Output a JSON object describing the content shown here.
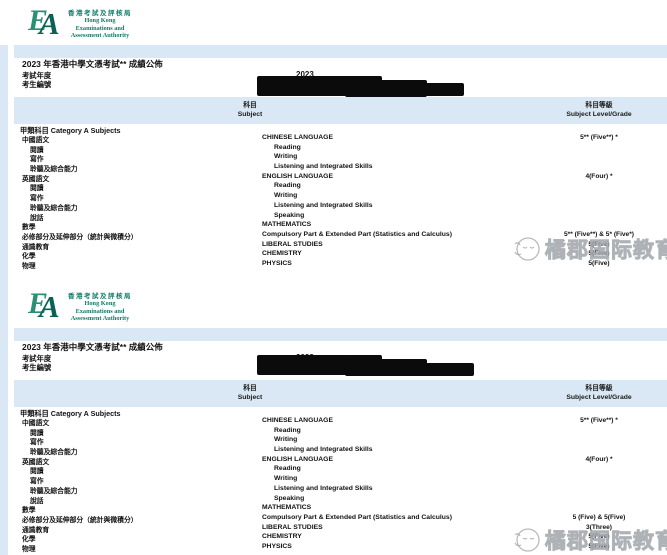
{
  "page": {
    "background": "#ffffff",
    "band_color": "#d9e8f4",
    "strip_color": "#d9e8f4"
  },
  "logo": {
    "monogram": "EA",
    "monogram_color_e": "#2a8f77",
    "monogram_color_a": "#0b6155",
    "zh": "香港考試及評核局",
    "en_lines": [
      "Hong Kong",
      "Examinations and",
      "Assessment Authority"
    ],
    "text_color": "#127a68"
  },
  "watermark": {
    "text": "橘郡国际教育",
    "icon": "mascot-face-icon",
    "color": "#b4b8bb"
  },
  "table_header": {
    "subject_zh": "科目",
    "subject_en": "Subject",
    "level_zh": "科目等級",
    "level_en": "Subject Level/Grade"
  },
  "category": {
    "zh": "甲類科目",
    "en": "Category A Subjects"
  },
  "meta_labels": {
    "year": "考試年度",
    "candidate": "考生編號"
  },
  "slips": [
    {
      "title": "2023 年香港中學文憑考試** 成績公佈",
      "year_value": "2023",
      "candidate_redacted": true,
      "rows": [
        {
          "zh": "中國語文",
          "en": "CHINESE LANGUAGE",
          "grade": "5** (Five**) *",
          "cls": "main"
        },
        {
          "zh": "閱讀",
          "en": "Reading",
          "grade": "",
          "cls": "sub"
        },
        {
          "zh": "寫作",
          "en": "Writing",
          "grade": "",
          "cls": "sub"
        },
        {
          "zh": "聆聽及綜合能力",
          "en": "Listening and Integrated Skills",
          "grade": "",
          "cls": "sub"
        },
        {
          "zh": "英國語文",
          "en": "ENGLISH LANGUAGE",
          "grade": "4(Four) *",
          "cls": "main"
        },
        {
          "zh": "閱讀",
          "en": "Reading",
          "grade": "",
          "cls": "sub"
        },
        {
          "zh": "寫作",
          "en": "Writing",
          "grade": "",
          "cls": "sub"
        },
        {
          "zh": "聆聽及綜合能力",
          "en": "Listening and Integrated Skills",
          "grade": "",
          "cls": "sub"
        },
        {
          "zh": "說話",
          "en": "Speaking",
          "grade": "",
          "cls": "sub"
        },
        {
          "zh": "數學",
          "en": "MATHEMATICS",
          "grade": "",
          "cls": "main"
        },
        {
          "zh": "必修部分及延伸部分（統計與微積分）",
          "en": "Compulsory Part & Extended Part (Statistics and Calculus)",
          "grade": "5** (Five**) & 5* (Five*)",
          "cls": "main"
        },
        {
          "zh": "通識教育",
          "en": "LIBERAL STUDIES",
          "grade": "5(Five)",
          "cls": "main"
        },
        {
          "zh": "化學",
          "en": "CHEMISTRY",
          "grade": "5(Five)",
          "cls": "main"
        },
        {
          "zh": "物理",
          "en": "PHYSICS",
          "grade": "5(Five)",
          "cls": "main"
        }
      ]
    },
    {
      "title": "2023 年香港中學文憑考試** 成績公佈",
      "year_value": "2023",
      "candidate_redacted": true,
      "rows": [
        {
          "zh": "中國語文",
          "en": "CHINESE LANGUAGE",
          "grade": "5** (Five**) *",
          "cls": "main"
        },
        {
          "zh": "閱讀",
          "en": "Reading",
          "grade": "",
          "cls": "sub"
        },
        {
          "zh": "寫作",
          "en": "Writing",
          "grade": "",
          "cls": "sub"
        },
        {
          "zh": "聆聽及綜合能力",
          "en": "Listening and Integrated Skills",
          "grade": "",
          "cls": "sub"
        },
        {
          "zh": "英國語文",
          "en": "ENGLISH LANGUAGE",
          "grade": "4(Four) *",
          "cls": "main"
        },
        {
          "zh": "閱讀",
          "en": "Reading",
          "grade": "",
          "cls": "sub"
        },
        {
          "zh": "寫作",
          "en": "Writing",
          "grade": "",
          "cls": "sub"
        },
        {
          "zh": "聆聽及綜合能力",
          "en": "Listening and Integrated Skills",
          "grade": "",
          "cls": "sub"
        },
        {
          "zh": "說話",
          "en": "Speaking",
          "grade": "",
          "cls": "sub"
        },
        {
          "zh": "數學",
          "en": "MATHEMATICS",
          "grade": "",
          "cls": "main"
        },
        {
          "zh": "必修部分及延伸部分（統計與微積分）",
          "en": "Compulsory Part & Extended Part (Statistics and Calculus)",
          "grade": "5 (Five) & 5(Five)",
          "cls": "main"
        },
        {
          "zh": "通識教育",
          "en": "LIBERAL STUDIES",
          "grade": "3(Three)",
          "cls": "main"
        },
        {
          "zh": "化學",
          "en": "CHEMISTRY",
          "grade": "5(Five)",
          "cls": "main"
        },
        {
          "zh": "物理",
          "en": "PHYSICS",
          "grade": "5(Five)",
          "cls": "main"
        }
      ]
    }
  ]
}
